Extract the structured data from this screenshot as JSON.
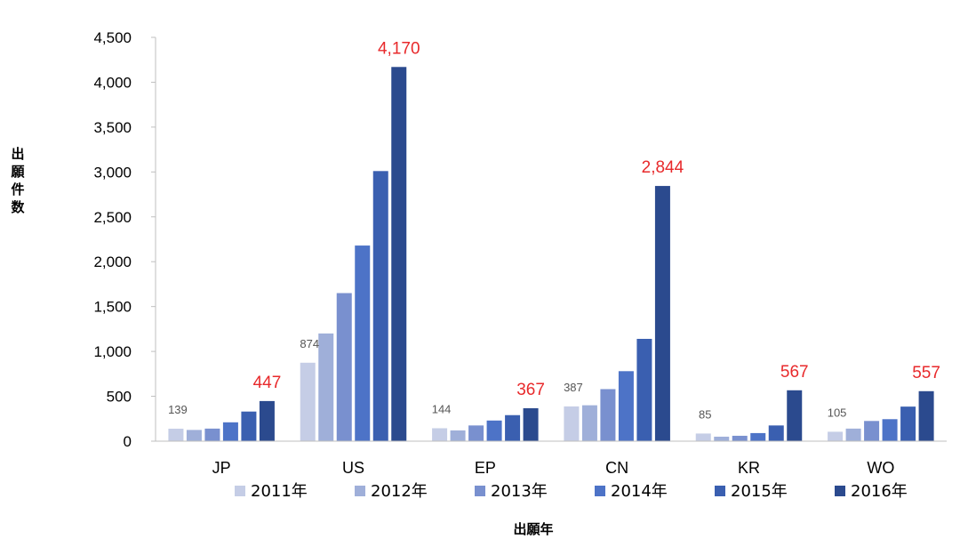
{
  "chart_data": {
    "type": "bar",
    "categories": [
      "JP",
      "US",
      "EP",
      "CN",
      "KR",
      "WO"
    ],
    "series": [
      {
        "name": "2011年",
        "color": "#c5cde6",
        "values": [
          139,
          874,
          144,
          387,
          85,
          105
        ]
      },
      {
        "name": "2012年",
        "color": "#9fafd9",
        "values": [
          125,
          1200,
          120,
          400,
          50,
          140
        ]
      },
      {
        "name": "2013年",
        "color": "#7990cf",
        "values": [
          140,
          1650,
          175,
          580,
          60,
          225
        ]
      },
      {
        "name": "2014年",
        "color": "#4d73c7",
        "values": [
          210,
          2180,
          230,
          780,
          90,
          245
        ]
      },
      {
        "name": "2015年",
        "color": "#3a5fb0",
        "values": [
          330,
          3010,
          290,
          1140,
          175,
          385
        ]
      },
      {
        "name": "2016年",
        "color": "#2b4a8e",
        "values": [
          447,
          4170,
          367,
          2844,
          567,
          557
        ]
      }
    ],
    "ylim": [
      0,
      4500
    ],
    "yticks": [
      "0",
      "500",
      "1,000",
      "1,500",
      "2,000",
      "2,500",
      "3,000",
      "3,500",
      "4,000",
      "4,500"
    ],
    "ylabel": "出願件数",
    "xlabel": "出願年",
    "data_labels": {
      "first_series": [
        "139",
        "874",
        "144",
        "387",
        "85",
        "105"
      ],
      "last_series": [
        "447",
        "4,170",
        "367",
        "2,844",
        "567",
        "557"
      ]
    },
    "first_label_color": "#555555",
    "last_label_color": "#e8292b",
    "legend_position": "bottom",
    "grid": false
  }
}
